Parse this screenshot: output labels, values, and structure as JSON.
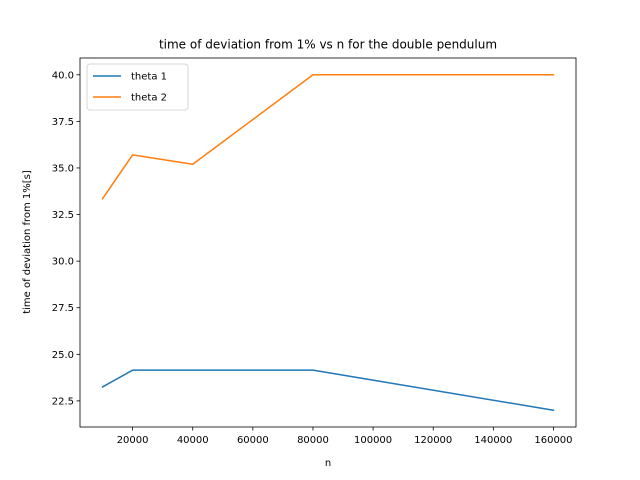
{
  "chart_data": {
    "type": "line",
    "title": "time of deviation from 1% vs n for the double pendulum",
    "xlabel": "n",
    "ylabel": "time of deviation from 1%[s]",
    "x": [
      10000,
      20000,
      40000,
      80000,
      160000
    ],
    "series": [
      {
        "name": "theta 1",
        "color": "#1f77b4",
        "values": [
          23.25,
          24.15,
          24.15,
          24.15,
          22.0
        ]
      },
      {
        "name": "theta 2",
        "color": "#ff7f0e",
        "values": [
          33.35,
          35.7,
          35.2,
          40.0,
          40.0
        ]
      }
    ],
    "xlim": [
      2500,
      167500
    ],
    "ylim": [
      21.1,
      40.9
    ],
    "xticks": [
      20000,
      40000,
      60000,
      80000,
      100000,
      120000,
      140000,
      160000
    ],
    "xtick_labels": [
      "20000",
      "40000",
      "60000",
      "80000",
      "100000",
      "120000",
      "140000",
      "160000"
    ],
    "yticks": [
      22.5,
      25.0,
      27.5,
      30.0,
      32.5,
      35.0,
      37.5,
      40.0
    ],
    "ytick_labels": [
      "22.5",
      "25.0",
      "27.5",
      "30.0",
      "32.5",
      "35.0",
      "37.5",
      "40.0"
    ],
    "legend_position": "top-left",
    "grid": false
  }
}
